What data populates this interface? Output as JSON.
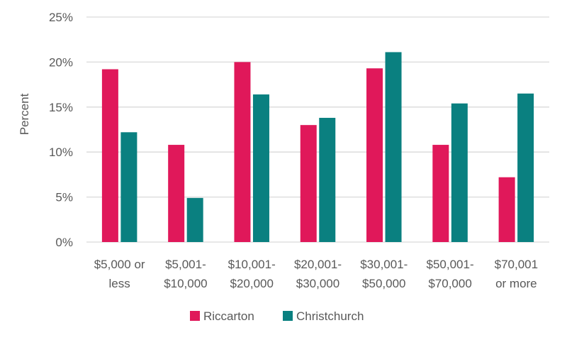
{
  "chart_data": {
    "type": "bar",
    "title": "",
    "xlabel": "",
    "ylabel": "Percent",
    "ylim": [
      0,
      25
    ],
    "yticks": [
      "0%",
      "5%",
      "10%",
      "15%",
      "20%",
      "25%"
    ],
    "ytick_values": [
      0,
      5,
      10,
      15,
      20,
      25
    ],
    "grid": true,
    "legend_position": "bottom",
    "categories": [
      [
        "$5,000 or",
        "less"
      ],
      [
        "$5,001-",
        "$10,000"
      ],
      [
        "$10,001-",
        "$20,000"
      ],
      [
        "$20,001-",
        "$30,000"
      ],
      [
        "$30,001-",
        "$50,000"
      ],
      [
        "$50,001-",
        "$70,000"
      ],
      [
        "$70,001",
        "or more"
      ]
    ],
    "series": [
      {
        "name": "Riccarton",
        "color": "#E0185A",
        "values": [
          19.2,
          10.8,
          20.0,
          13.0,
          19.3,
          10.8,
          7.2
        ]
      },
      {
        "name": "Christchurch",
        "color": "#0A8080",
        "values": [
          12.2,
          4.9,
          16.4,
          13.8,
          21.1,
          15.4,
          16.5
        ]
      }
    ]
  }
}
